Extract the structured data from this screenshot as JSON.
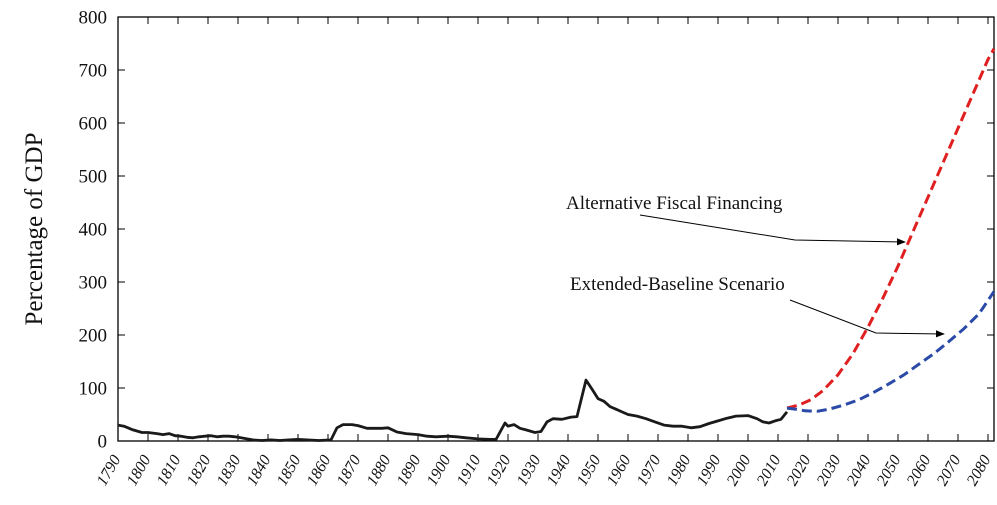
{
  "chart_data": {
    "type": "line",
    "title": "",
    "xlabel": "",
    "ylabel": "Percentage of GDP",
    "xlim": [
      1790,
      2082
    ],
    "ylim": [
      0,
      800
    ],
    "yticks": [
      0,
      100,
      200,
      300,
      400,
      500,
      600,
      700,
      800
    ],
    "xticks": [
      1790,
      1800,
      1810,
      1820,
      1830,
      1840,
      1850,
      1860,
      1870,
      1880,
      1890,
      1900,
      1910,
      1920,
      1930,
      1940,
      1950,
      1960,
      1970,
      1980,
      1990,
      2000,
      2010,
      2020,
      2030,
      2040,
      2050,
      2060,
      2070,
      2080
    ],
    "grid": false,
    "series": [
      {
        "key": "historical",
        "color": "#1a1a1a",
        "style": "solid",
        "points": [
          [
            1790,
            30
          ],
          [
            1792,
            28
          ],
          [
            1795,
            21
          ],
          [
            1798,
            16
          ],
          [
            1800,
            16
          ],
          [
            1803,
            14
          ],
          [
            1805,
            12
          ],
          [
            1807,
            14
          ],
          [
            1809,
            10
          ],
          [
            1811,
            9
          ],
          [
            1813,
            7
          ],
          [
            1815,
            6
          ],
          [
            1817,
            8
          ],
          [
            1819,
            9
          ],
          [
            1821,
            10
          ],
          [
            1823,
            8
          ],
          [
            1825,
            9
          ],
          [
            1827,
            9
          ],
          [
            1829,
            8
          ],
          [
            1831,
            6
          ],
          [
            1833,
            4
          ],
          [
            1835,
            2
          ],
          [
            1838,
            1
          ],
          [
            1841,
            2
          ],
          [
            1844,
            1
          ],
          [
            1847,
            2
          ],
          [
            1850,
            3
          ],
          [
            1853,
            2
          ],
          [
            1857,
            1
          ],
          [
            1861,
            2
          ],
          [
            1863,
            25
          ],
          [
            1865,
            31
          ],
          [
            1868,
            31
          ],
          [
            1870,
            29
          ],
          [
            1873,
            24
          ],
          [
            1876,
            24
          ],
          [
            1878,
            24
          ],
          [
            1880,
            25
          ],
          [
            1883,
            17
          ],
          [
            1886,
            14
          ],
          [
            1890,
            12
          ],
          [
            1893,
            9
          ],
          [
            1896,
            8
          ],
          [
            1900,
            9
          ],
          [
            1903,
            8
          ],
          [
            1906,
            6
          ],
          [
            1910,
            4
          ],
          [
            1914,
            3
          ],
          [
            1916,
            3
          ],
          [
            1919,
            34
          ],
          [
            1920,
            28
          ],
          [
            1922,
            31
          ],
          [
            1924,
            24
          ],
          [
            1926,
            21
          ],
          [
            1929,
            16
          ],
          [
            1931,
            18
          ],
          [
            1933,
            36
          ],
          [
            1935,
            42
          ],
          [
            1938,
            41
          ],
          [
            1941,
            45
          ],
          [
            1943,
            46
          ],
          [
            1946,
            115
          ],
          [
            1948,
            98
          ],
          [
            1950,
            80
          ],
          [
            1952,
            75
          ],
          [
            1954,
            65
          ],
          [
            1956,
            60
          ],
          [
            1958,
            55
          ],
          [
            1960,
            50
          ],
          [
            1963,
            47
          ],
          [
            1966,
            42
          ],
          [
            1969,
            36
          ],
          [
            1972,
            30
          ],
          [
            1975,
            28
          ],
          [
            1978,
            28
          ],
          [
            1981,
            25
          ],
          [
            1984,
            27
          ],
          [
            1987,
            33
          ],
          [
            1990,
            38
          ],
          [
            1993,
            43
          ],
          [
            1996,
            47
          ],
          [
            2000,
            48
          ],
          [
            2003,
            42
          ],
          [
            2005,
            36
          ],
          [
            2007,
            34
          ],
          [
            2009,
            38
          ],
          [
            2011,
            41
          ],
          [
            2013,
            55
          ]
        ]
      },
      {
        "key": "alternative_fiscal_financing",
        "name": "Alternative Fiscal Financing",
        "color": "#e02020",
        "style": "dashed",
        "points": [
          [
            2013,
            62
          ],
          [
            2017,
            68
          ],
          [
            2021,
            78
          ],
          [
            2025,
            95
          ],
          [
            2030,
            125
          ],
          [
            2035,
            165
          ],
          [
            2040,
            215
          ],
          [
            2045,
            270
          ],
          [
            2050,
            330
          ],
          [
            2055,
            395
          ],
          [
            2060,
            460
          ],
          [
            2065,
            525
          ],
          [
            2070,
            590
          ],
          [
            2075,
            655
          ],
          [
            2080,
            720
          ],
          [
            2082,
            740
          ]
        ]
      },
      {
        "key": "extended_baseline_scenario",
        "name": "Extended-Baseline Scenario",
        "color": "#2b4aa8",
        "style": "dashed",
        "points": [
          [
            2013,
            62
          ],
          [
            2016,
            60
          ],
          [
            2019,
            57
          ],
          [
            2023,
            56
          ],
          [
            2027,
            60
          ],
          [
            2032,
            68
          ],
          [
            2037,
            78
          ],
          [
            2042,
            92
          ],
          [
            2047,
            108
          ],
          [
            2052,
            125
          ],
          [
            2057,
            145
          ],
          [
            2062,
            165
          ],
          [
            2067,
            188
          ],
          [
            2072,
            212
          ],
          [
            2077,
            240
          ],
          [
            2082,
            282
          ]
        ]
      }
    ],
    "annotations": [
      {
        "text": "Alternative Fiscal Financing",
        "points_to_series": "alternative_fiscal_financing"
      },
      {
        "text": "Extended-Baseline Scenario",
        "points_to_series": "extended_baseline_scenario"
      }
    ]
  }
}
